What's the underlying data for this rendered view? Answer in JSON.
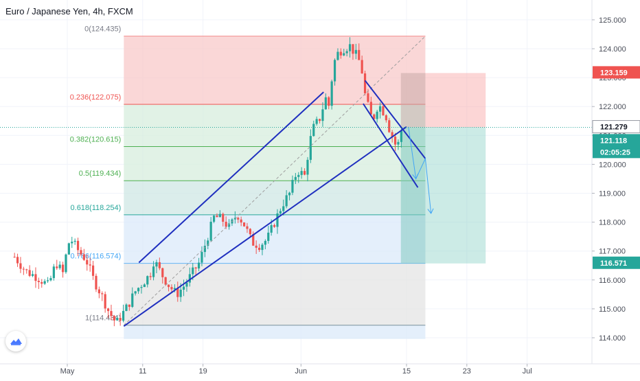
{
  "header": {
    "title": "Euro / Japanese Yen, 4h, FXCM"
  },
  "icons": {
    "logo": "tradingview-cloud-icon"
  },
  "colors": {
    "up": "#26a69a",
    "down": "#ef5350",
    "channel": "#1f2fbf",
    "fib_red": "#f8c9c9",
    "fib_green": "#d7eedd",
    "fib_teal": "#cfe7e4",
    "fib_blue": "#dbeafa",
    "fib_gray": "#e4e4e4",
    "price_line": "#26a69a"
  },
  "chart_data": {
    "type": "candlestick",
    "symbol": "Euro / Japanese Yen",
    "timeframe": "4h",
    "source": "FXCM",
    "ylim": [
      113.5,
      125.5
    ],
    "y_ticks": [
      "114.000",
      "115.000",
      "116.000",
      "117.000",
      "118.000",
      "119.000",
      "120.000",
      "121.000",
      "122.000",
      "123.000",
      "124.000",
      "125.000"
    ],
    "x_ticks": [
      {
        "label": "May",
        "date": "2020-05-01"
      },
      {
        "label": "11",
        "date": "2020-05-11"
      },
      {
        "label": "19",
        "date": "2020-05-19"
      },
      {
        "label": "Jun",
        "date": "2020-06-01"
      },
      {
        "label": "15",
        "date": "2020-06-15"
      },
      {
        "label": "23",
        "date": "2020-06-23"
      },
      {
        "label": "Jul",
        "date": "2020-07-01"
      }
    ],
    "fib_levels": [
      {
        "ratio": "0",
        "price": 124.435,
        "label": "0(124.435)"
      },
      {
        "ratio": "0.236",
        "price": 122.075,
        "label": "0.236(122.075)"
      },
      {
        "ratio": "0.382",
        "price": 120.615,
        "label": "0.382(120.615)"
      },
      {
        "ratio": "0.5",
        "price": 119.434,
        "label": "0.5(119.434)"
      },
      {
        "ratio": "0.618",
        "price": 118.254,
        "label": "0.618(118.254)"
      },
      {
        "ratio": "0.786",
        "price": 116.574,
        "label": "0.786(116.574)"
      },
      {
        "ratio": "1",
        "price": 114.434,
        "label": "1(114.434)"
      }
    ],
    "price_labels": [
      {
        "value": "123.159",
        "kind": "stop"
      },
      {
        "value": "121.279",
        "kind": "crosshair"
      },
      {
        "value": "121.118",
        "kind": "last"
      },
      {
        "value": "02:05:25",
        "kind": "countdown"
      },
      {
        "value": "116.571",
        "kind": "target"
      }
    ],
    "position": {
      "entry": 121.279,
      "stop": 123.159,
      "target": 116.571
    },
    "path": [
      [
        "2020-04-24T00:00",
        116.8
      ],
      [
        "2020-04-25T12:00",
        116.3
      ],
      [
        "2020-04-27T00:00",
        116.1
      ],
      [
        "2020-04-28T12:00",
        115.8
      ],
      [
        "2020-04-29T12:00",
        116.6
      ],
      [
        "2020-04-30T00:00",
        116.4
      ],
      [
        "2020-04-30T12:00",
        116.2
      ],
      [
        "2020-05-01T00:00",
        117.2
      ],
      [
        "2020-05-01T12:00",
        117.4
      ],
      [
        "2020-05-02T12:00",
        117.0
      ],
      [
        "2020-05-03T12:00",
        116.7
      ],
      [
        "2020-05-04T12:00",
        116.0
      ],
      [
        "2020-05-05T12:00",
        115.5
      ],
      [
        "2020-05-06T12:00",
        114.9
      ],
      [
        "2020-05-07T12:00",
        114.5
      ],
      [
        "2020-05-08T06:00",
        114.8
      ],
      [
        "2020-05-09T00:00",
        115.1
      ],
      [
        "2020-05-10T00:00",
        115.6
      ],
      [
        "2020-05-11T00:00",
        115.9
      ],
      [
        "2020-05-12T00:00",
        116.2
      ],
      [
        "2020-05-12T12:00",
        116.7
      ],
      [
        "2020-05-13T12:00",
        116.2
      ],
      [
        "2020-05-14T12:00",
        115.8
      ],
      [
        "2020-05-15T12:00",
        115.5
      ],
      [
        "2020-05-16T12:00",
        115.8
      ],
      [
        "2020-05-17T12:00",
        116.2
      ],
      [
        "2020-05-18T12:00",
        116.6
      ],
      [
        "2020-05-19T12:00",
        117.4
      ],
      [
        "2020-05-20T12:00",
        118.2
      ],
      [
        "2020-05-21T12:00",
        118.1
      ],
      [
        "2020-05-22T12:00",
        117.8
      ],
      [
        "2020-05-23T12:00",
        118.3
      ],
      [
        "2020-05-24T12:00",
        117.9
      ],
      [
        "2020-05-25T12:00",
        117.3
      ],
      [
        "2020-05-26T12:00",
        117.2
      ],
      [
        "2020-05-27T12:00",
        117.4
      ],
      [
        "2020-05-28T12:00",
        118.0
      ],
      [
        "2020-05-29T12:00",
        118.6
      ],
      [
        "2020-05-30T12:00",
        119.0
      ],
      [
        "2020-05-31T12:00",
        119.8
      ],
      [
        "2020-06-01T12:00",
        119.6
      ],
      [
        "2020-06-02T00:00",
        120.5
      ],
      [
        "2020-06-02T12:00",
        121.2
      ],
      [
        "2020-06-03T12:00",
        121.6
      ],
      [
        "2020-06-04T06:00",
        122.3
      ],
      [
        "2020-06-04T18:00",
        122.0
      ],
      [
        "2020-06-05T06:00",
        123.4
      ],
      [
        "2020-06-05T18:00",
        123.8
      ],
      [
        "2020-06-06T12:00",
        124.0
      ],
      [
        "2020-06-07T12:00",
        124.1
      ],
      [
        "2020-06-08T12:00",
        123.7
      ],
      [
        "2020-06-09T00:00",
        123.4
      ],
      [
        "2020-06-09T12:00",
        122.4
      ],
      [
        "2020-06-10T00:00",
        121.9
      ],
      [
        "2020-06-10T12:00",
        121.5
      ],
      [
        "2020-06-11T06:00",
        122.1
      ],
      [
        "2020-06-11T18:00",
        121.9
      ],
      [
        "2020-06-12T06:00",
        121.7
      ],
      [
        "2020-06-12T18:00",
        121.2
      ],
      [
        "2020-06-13T06:00",
        120.9
      ],
      [
        "2020-06-13T18:00",
        120.5
      ],
      [
        "2020-06-14T06:00",
        121.2
      ],
      [
        "2020-06-14T12:00",
        121.1
      ]
    ],
    "drawings": {
      "channel_upper": [
        [
          "2020-05-10T12:00",
          116.6
        ],
        [
          "2020-06-04T00:00",
          122.5
        ]
      ],
      "channel_lower": [
        [
          "2020-05-08T12:00",
          114.4
        ],
        [
          "2020-06-15T00:00",
          121.3
        ]
      ],
      "wedge_upper": [
        [
          "2020-06-09T12:00",
          122.9
        ],
        [
          "2020-06-17T12:00",
          120.2
        ]
      ],
      "wedge_lower": [
        [
          "2020-06-09T06:00",
          122.1
        ],
        [
          "2020-06-16T12:00",
          119.2
        ]
      ],
      "median_line": [
        [
          "2020-05-08T12:00",
          114.434
        ],
        [
          "2020-06-17T12:00",
          124.435
        ]
      ],
      "forecast_path": [
        [
          "2020-06-15T06:00",
          121.3
        ],
        [
          "2020-06-16T06:00",
          119.5
        ],
        [
          "2020-06-17T12:00",
          120.2
        ],
        [
          "2020-06-18T06:00",
          118.3
        ]
      ]
    }
  }
}
